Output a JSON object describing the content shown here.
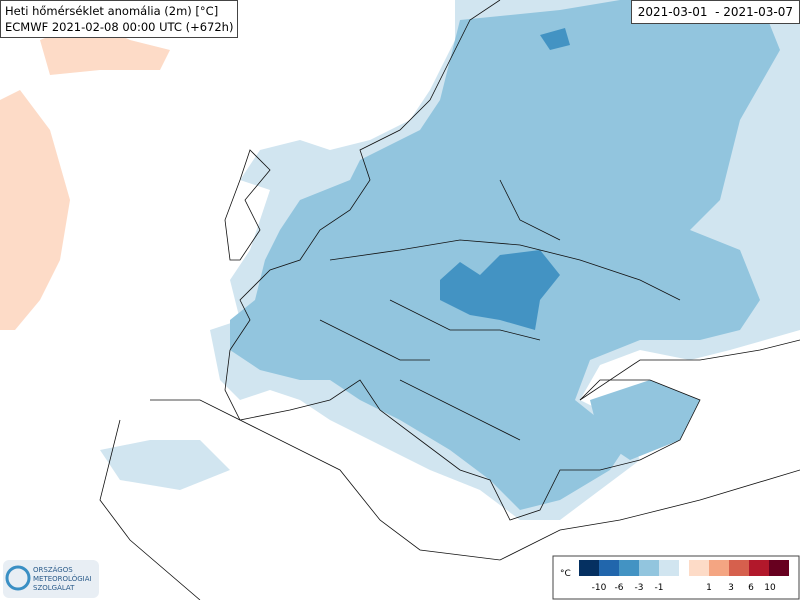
{
  "header": {
    "title": "Heti hőmérséklet anomália (2m) [°C]",
    "subtitle": "ECMWF 2021-02-08 00:00 UTC (+672h)"
  },
  "date_range": "2021-03-01  - 2021-03-07",
  "legend": {
    "unit": "°C",
    "labels": [
      "-10",
      "-6",
      "-3",
      "-1",
      "1",
      "3",
      "6",
      "10"
    ]
  },
  "logo": {
    "lines": [
      "ORSZÁGOS",
      "METEOROLÓGIAI",
      "SZOLGÁLAT"
    ]
  }
}
